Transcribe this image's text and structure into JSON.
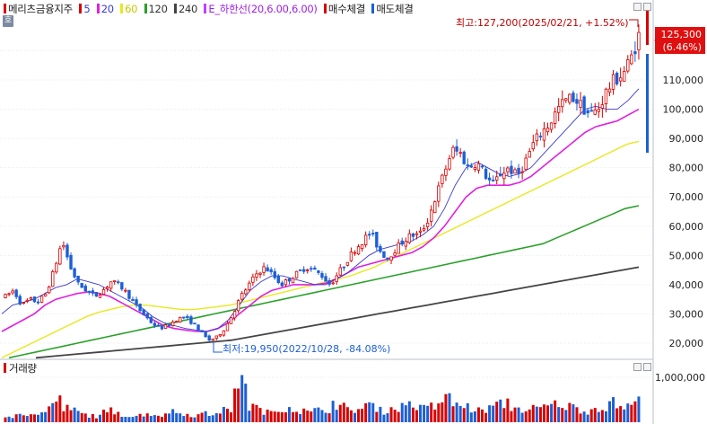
{
  "legend": {
    "stock": "메리츠금융지주",
    "ma5": "5",
    "ma20": "20",
    "ma60": "60",
    "ma120": "120",
    "ma240": "240",
    "envelope": "E_하한선(20,6.00,6.00)",
    "buy_fill": "매수체결",
    "sell_fill": "매도체결",
    "ho_icon": "호"
  },
  "colors": {
    "up": "#d80000",
    "down": "#1c5fd6",
    "ma5": "#3a3ad0",
    "ma20": "#e020e0",
    "ma60": "#e8e820",
    "ma120": "#2aa02a",
    "ma240": "#444444",
    "envelope": "#c040ff",
    "buy": "#d80000",
    "sell": "#1c5fd6"
  },
  "chart_data": {
    "type": "candlestick",
    "price_axis_labels": [
      "110,000",
      "100,000",
      "90,000",
      "80,000",
      "70,000",
      "60,000",
      "50,000",
      "40,000",
      "30,000",
      "20,000"
    ],
    "price_ticks": [
      110000,
      100000,
      90000,
      80000,
      70000,
      60000,
      50000,
      40000,
      30000,
      20000
    ],
    "volume_axis_label": "1,000,000",
    "volume_tick": 1000000,
    "volume_label": "거래량",
    "current_price": "125,300",
    "current_change": "(6.46%)",
    "high_annotation": "최고:127,200(2025/02/21, +1.52%)",
    "low_annotation": "최저:19,950(2022/10/28, -84.08%)",
    "price_trace": [
      36000,
      38000,
      33000,
      35000,
      34000,
      37000,
      45000,
      55000,
      46000,
      40000,
      38000,
      36000,
      38000,
      41000,
      40000,
      37000,
      33000,
      30000,
      27000,
      25000,
      26000,
      28000,
      29000,
      27000,
      24000,
      21000,
      22000,
      25000,
      30000,
      36000,
      40000,
      44000,
      46000,
      43000,
      40000,
      42000,
      44000,
      46000,
      45000,
      43000,
      40000,
      44000,
      48000,
      52000,
      55000,
      58000,
      52000,
      49000,
      52000,
      55000,
      57000,
      57000,
      62000,
      70000,
      78000,
      86000,
      85000,
      80000,
      82000,
      78000,
      74000,
      78000,
      80000,
      77000,
      82000,
      88000,
      92000,
      95000,
      100000,
      103000,
      104000,
      101000,
      98000,
      100000,
      106000,
      110000,
      112000,
      117000,
      125300
    ],
    "ma_trace": {
      "5": [
        30000,
        33000,
        34000,
        35000,
        37000,
        39000,
        40000,
        42000,
        41000,
        40000,
        38000,
        36000,
        34000,
        32000,
        29000,
        27000,
        26000,
        25000,
        24500,
        24000,
        25000,
        28000,
        33000,
        38000,
        41000,
        43000,
        43000,
        42000,
        41000,
        40000,
        40000,
        42000,
        44000,
        47000,
        50000,
        52000,
        53000,
        54000,
        55000,
        57000,
        60000,
        66000,
        74000,
        80000,
        82000,
        80000,
        78000,
        77000,
        78000,
        80000,
        84000,
        88000,
        92000,
        96000,
        100000,
        101000,
        100000,
        100000,
        103000,
        107000
      ],
      "20": [
        24000,
        26000,
        28000,
        30000,
        33000,
        35000,
        36000,
        37000,
        37500,
        37000,
        36000,
        34000,
        32000,
        30000,
        28000,
        26000,
        25000,
        24500,
        24000,
        24000,
        25000,
        27000,
        30000,
        33000,
        36000,
        38000,
        39000,
        40000,
        40000,
        40000,
        40500,
        42000,
        44000,
        46000,
        47000,
        48000,
        49000,
        50000,
        51000,
        53000,
        56000,
        60000,
        65000,
        70000,
        73000,
        74000,
        74000,
        74000,
        75000,
        77000,
        80000,
        83000,
        86000,
        89000,
        92000,
        94000,
        95000,
        96000,
        98000,
        100000
      ],
      "60": [
        15000,
        17000,
        19000,
        21000,
        23000,
        25000,
        27000,
        29000,
        30500,
        31500,
        32500,
        33000,
        33000,
        32500,
        32000,
        31500,
        31500,
        32000,
        32500,
        33000,
        34000,
        35000,
        36000,
        37000,
        38000,
        39000,
        40000,
        41000,
        42000,
        43000,
        44500,
        46000,
        48000,
        50000,
        52000,
        54000,
        56000,
        58000,
        60000,
        62000,
        64000,
        66000,
        68000,
        70000,
        72000,
        74000,
        76000,
        78000,
        80000,
        82000,
        84000,
        86000,
        88000,
        89000
      ],
      "120": [
        15000,
        16000,
        17000,
        18000,
        19000,
        20000,
        21000,
        22000,
        23000,
        24000,
        25000,
        26000,
        27000,
        28000,
        29000,
        30000,
        31000,
        32000,
        33000,
        34000,
        35000,
        36000,
        37000,
        38000,
        39000,
        40000,
        41000,
        42000,
        43000,
        44000,
        45000,
        46000,
        47000,
        48000,
        49000,
        50000,
        51000,
        52000,
        53000,
        54000,
        56000,
        58000,
        60000,
        62000,
        64000,
        66000,
        67000
      ],
      "240": [
        15000,
        15500,
        16000,
        16500,
        17000,
        17500,
        18000,
        18500,
        19000,
        19500,
        20000,
        20500,
        21000,
        22000,
        23000,
        24000,
        25000,
        26000,
        27000,
        28000,
        29000,
        30000,
        31000,
        32000,
        33000,
        34000,
        35000,
        36000,
        37000,
        38000,
        39000,
        40000,
        41000,
        42000,
        43000,
        44000,
        45000,
        46000
      ]
    },
    "volume_trace": [
      0.15,
      0.3,
      0.2,
      0.18,
      0.25,
      0.4,
      0.6,
      0.35,
      0.3,
      0.2,
      0.18,
      0.15,
      0.25,
      0.3,
      0.2,
      0.15,
      0.18,
      0.22,
      0.2,
      0.18,
      0.3,
      0.25,
      0.2,
      0.18,
      0.22,
      0.2,
      0.3,
      0.35,
      0.6,
      1.05,
      0.4,
      0.3,
      0.25,
      0.3,
      0.4,
      0.35,
      0.3,
      0.25,
      0.3,
      0.35,
      0.5,
      0.4,
      0.3,
      0.35,
      0.45,
      0.4,
      0.3,
      0.35,
      0.4,
      0.5,
      0.45,
      0.35,
      0.4,
      0.55,
      0.6,
      0.5,
      0.4,
      0.35,
      0.3,
      0.35,
      0.45,
      0.5,
      0.4,
      0.35,
      0.3,
      0.35,
      0.4,
      0.45,
      0.5,
      0.4,
      0.35,
      0.3,
      0.35,
      0.4,
      0.5,
      0.45,
      0.4,
      0.5,
      0.6
    ]
  }
}
